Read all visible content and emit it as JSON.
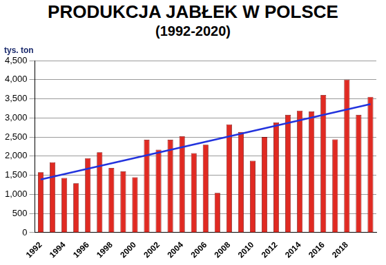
{
  "chart_data": {
    "type": "bar",
    "title": "PRODUKCJA JABŁEK W POLSCE",
    "subtitle": "(1992-2020)",
    "ylabel": "tys. ton",
    "categories": [
      "1992",
      null,
      "1994",
      null,
      "1996",
      null,
      "1998",
      null,
      "2000",
      null,
      "2002",
      null,
      "2004",
      null,
      "2006",
      null,
      "2008",
      null,
      "2010",
      null,
      "2012",
      null,
      "2014",
      null,
      "2016",
      null,
      "2018",
      null,
      null
    ],
    "series": [
      {
        "type": "bar",
        "color": "#e02a22",
        "values": [
          1580,
          1840,
          1430,
          1290,
          1950,
          2100,
          1690,
          1600,
          1450,
          2430,
          2170,
          2430,
          2520,
          2080,
          2300,
          1040,
          2830,
          2630,
          1880,
          2500,
          2880,
          3080,
          3190,
          3170,
          3600,
          2440,
          4000,
          3080,
          3550
        ]
      },
      {
        "type": "line",
        "color": "#2233dd",
        "line_style": "solid",
        "values": [
          1390,
          null,
          null,
          null,
          null,
          null,
          null,
          null,
          null,
          null,
          null,
          null,
          null,
          null,
          null,
          null,
          null,
          null,
          null,
          null,
          null,
          null,
          null,
          null,
          null,
          null,
          null,
          null,
          3360
        ]
      }
    ],
    "ylim": [
      0,
      4500
    ],
    "yticks": [
      0,
      500,
      1000,
      1500,
      2000,
      2500,
      3000,
      3500,
      4000,
      4500
    ],
    "grid": true
  }
}
